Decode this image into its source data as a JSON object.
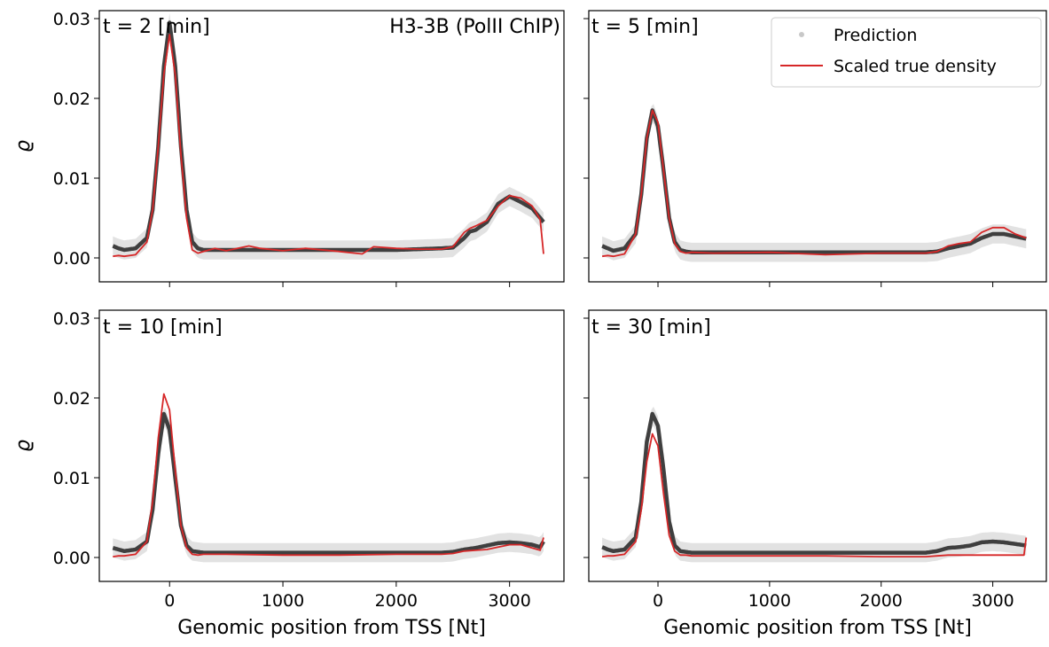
{
  "gene_label": "H3-3B (PolII ChIP)",
  "legend": {
    "position": "top-right",
    "entries": [
      {
        "label": "Prediction",
        "color": "#b0b0b0",
        "marker": "point"
      },
      {
        "label": "Scaled true density",
        "color": "#d62728",
        "marker": "line"
      }
    ]
  },
  "colors": {
    "prediction_band": "#e2e2e2",
    "prediction_line": "#222222",
    "true_density": "#d62728"
  },
  "chart_data": [
    {
      "type": "line",
      "panel": "t2",
      "title": "t = 2 [min]",
      "xlabel": "",
      "ylabel": "ϱ",
      "xlim": [
        -620,
        3480
      ],
      "ylim": [
        -0.003,
        0.031
      ],
      "xticks": [
        0,
        1000,
        2000,
        3000
      ],
      "yticks": [
        0.0,
        0.01,
        0.02,
        0.03
      ],
      "xticklabels": [
        "",
        "",
        "",
        ""
      ],
      "yticklabels": [
        "0.00",
        "0.01",
        "0.02",
        "0.03"
      ],
      "band_width": 0.0012,
      "series": [
        {
          "name": "Prediction",
          "x": [
            -500,
            -450,
            -400,
            -300,
            -200,
            -150,
            -100,
            -50,
            0,
            50,
            100,
            150,
            200,
            250,
            300,
            400,
            600,
            800,
            1000,
            1500,
            2000,
            2400,
            2500,
            2600,
            2650,
            2700,
            2800,
            2900,
            3000,
            3100,
            3200,
            3300
          ],
          "y": [
            0.0015,
            0.0012,
            0.001,
            0.0012,
            0.0025,
            0.006,
            0.014,
            0.024,
            0.0295,
            0.024,
            0.014,
            0.006,
            0.002,
            0.0012,
            0.001,
            0.001,
            0.001,
            0.001,
            0.001,
            0.001,
            0.001,
            0.0012,
            0.0013,
            0.0025,
            0.0033,
            0.0035,
            0.0045,
            0.0068,
            0.0077,
            0.007,
            0.0062,
            0.0045
          ]
        },
        {
          "name": "Scaled true density",
          "x": [
            -500,
            -450,
            -400,
            -300,
            -200,
            -150,
            -100,
            -50,
            0,
            50,
            100,
            150,
            200,
            250,
            300,
            400,
            500,
            700,
            800,
            1000,
            1200,
            1500,
            1700,
            1800,
            2000,
            2200,
            2400,
            2500,
            2600,
            2650,
            2700,
            2800,
            2900,
            3000,
            3100,
            3200,
            3270,
            3300
          ],
          "y": [
            0.0002,
            0.0003,
            0.0002,
            0.0004,
            0.002,
            0.006,
            0.014,
            0.023,
            0.028,
            0.023,
            0.013,
            0.005,
            0.001,
            0.0006,
            0.0008,
            0.0012,
            0.0009,
            0.0015,
            0.0012,
            0.0009,
            0.0012,
            0.0008,
            0.0005,
            0.0014,
            0.0012,
            0.0011,
            0.0011,
            0.0014,
            0.0032,
            0.0037,
            0.004,
            0.0047,
            0.0065,
            0.0078,
            0.0075,
            0.0065,
            0.0048,
            0.0005
          ]
        }
      ]
    },
    {
      "type": "line",
      "panel": "t5",
      "title": "t = 5 [min]",
      "xlabel": "",
      "ylabel": "",
      "xlim": [
        -620,
        3480
      ],
      "ylim": [
        -0.003,
        0.031
      ],
      "xticks": [
        0,
        1000,
        2000,
        3000
      ],
      "yticks": [
        0.0,
        0.01,
        0.02,
        0.03
      ],
      "xticklabels": [
        "",
        "",
        "",
        ""
      ],
      "yticklabels": [
        "",
        "",
        "",
        ""
      ],
      "band_width": 0.0012,
      "series": [
        {
          "name": "Prediction",
          "x": [
            -500,
            -450,
            -400,
            -300,
            -200,
            -150,
            -100,
            -50,
            0,
            50,
            100,
            150,
            200,
            250,
            300,
            500,
            1000,
            1500,
            2000,
            2400,
            2500,
            2600,
            2700,
            2800,
            2900,
            3000,
            3100,
            3200,
            3300
          ],
          "y": [
            0.0015,
            0.0012,
            0.0009,
            0.0012,
            0.003,
            0.008,
            0.015,
            0.0185,
            0.0165,
            0.011,
            0.005,
            0.002,
            0.001,
            0.0008,
            0.0007,
            0.0007,
            0.0007,
            0.0007,
            0.0007,
            0.0007,
            0.0008,
            0.0012,
            0.0015,
            0.0018,
            0.0025,
            0.003,
            0.003,
            0.0027,
            0.0024
          ]
        },
        {
          "name": "Scaled true density",
          "x": [
            -500,
            -450,
            -400,
            -300,
            -200,
            -150,
            -100,
            -50,
            0,
            50,
            100,
            150,
            200,
            250,
            300,
            500,
            1000,
            1500,
            2000,
            2400,
            2500,
            2600,
            2700,
            2800,
            2900,
            3000,
            3100,
            3200,
            3300
          ],
          "y": [
            0.0002,
            0.0003,
            0.0002,
            0.0005,
            0.003,
            0.008,
            0.015,
            0.0185,
            0.017,
            0.011,
            0.005,
            0.0018,
            0.0008,
            0.0006,
            0.0007,
            0.0006,
            0.0007,
            0.0004,
            0.0006,
            0.0006,
            0.0008,
            0.0015,
            0.0018,
            0.002,
            0.0032,
            0.0038,
            0.0038,
            0.003,
            0.0025
          ]
        }
      ]
    },
    {
      "type": "line",
      "panel": "t10",
      "title": "t = 10 [min]",
      "xlabel": "Genomic position from TSS [Nt]",
      "ylabel": "ϱ",
      "xlim": [
        -620,
        3480
      ],
      "ylim": [
        -0.003,
        0.031
      ],
      "xticks": [
        0,
        1000,
        2000,
        3000
      ],
      "yticks": [
        0.0,
        0.01,
        0.02,
        0.03
      ],
      "xticklabels": [
        "0",
        "1000",
        "2000",
        "3000"
      ],
      "yticklabels": [
        "0.00",
        "0.01",
        "0.02",
        "0.03"
      ],
      "band_width": 0.0012,
      "series": [
        {
          "name": "Prediction",
          "x": [
            -500,
            -450,
            -400,
            -300,
            -200,
            -150,
            -100,
            -50,
            0,
            50,
            100,
            150,
            200,
            250,
            300,
            500,
            1000,
            1500,
            2000,
            2400,
            2500,
            2600,
            2700,
            2800,
            2900,
            3000,
            3100,
            3200,
            3270,
            3300
          ],
          "y": [
            0.0012,
            0.001,
            0.0008,
            0.001,
            0.002,
            0.006,
            0.013,
            0.018,
            0.016,
            0.01,
            0.004,
            0.0015,
            0.0008,
            0.0007,
            0.0006,
            0.0006,
            0.0006,
            0.0006,
            0.0006,
            0.0006,
            0.0007,
            0.001,
            0.0012,
            0.0015,
            0.0018,
            0.0019,
            0.0018,
            0.0016,
            0.0013,
            0.002
          ]
        },
        {
          "name": "Scaled true density",
          "x": [
            -500,
            -450,
            -400,
            -300,
            -200,
            -150,
            -100,
            -50,
            0,
            50,
            100,
            150,
            200,
            250,
            300,
            500,
            1000,
            1500,
            2000,
            2400,
            2500,
            2600,
            2700,
            2800,
            2900,
            3000,
            3100,
            3200,
            3270,
            3300
          ],
          "y": [
            0.0001,
            0.0002,
            0.0002,
            0.0004,
            0.002,
            0.007,
            0.015,
            0.0205,
            0.0185,
            0.011,
            0.004,
            0.0012,
            0.0004,
            0.0003,
            0.0004,
            0.0004,
            0.0003,
            0.0003,
            0.0004,
            0.0004,
            0.0005,
            0.0008,
            0.0009,
            0.001,
            0.0013,
            0.0016,
            0.0016,
            0.0012,
            0.0009,
            0.0025
          ]
        }
      ]
    },
    {
      "type": "line",
      "panel": "t30",
      "title": "t = 30 [min]",
      "xlabel": "Genomic position from TSS [Nt]",
      "ylabel": "",
      "xlim": [
        -620,
        3480
      ],
      "ylim": [
        -0.003,
        0.031
      ],
      "xticks": [
        0,
        1000,
        2000,
        3000
      ],
      "yticks": [
        0.0,
        0.01,
        0.02,
        0.03
      ],
      "xticklabels": [
        "0",
        "1000",
        "2000",
        "3000"
      ],
      "yticklabels": [
        "",
        "",
        "",
        ""
      ],
      "band_width": 0.0012,
      "series": [
        {
          "name": "Prediction",
          "x": [
            -500,
            -450,
            -400,
            -300,
            -200,
            -150,
            -100,
            -50,
            0,
            50,
            100,
            150,
            200,
            250,
            300,
            500,
            1000,
            1500,
            2000,
            2400,
            2500,
            2600,
            2700,
            2800,
            2900,
            3000,
            3100,
            3200,
            3300
          ],
          "y": [
            0.0013,
            0.001,
            0.0008,
            0.001,
            0.0025,
            0.007,
            0.0145,
            0.018,
            0.0165,
            0.011,
            0.0045,
            0.0015,
            0.0008,
            0.0007,
            0.0006,
            0.0006,
            0.0006,
            0.0006,
            0.0006,
            0.0006,
            0.0008,
            0.0012,
            0.0013,
            0.0015,
            0.0019,
            0.002,
            0.0019,
            0.0017,
            0.0015
          ]
        },
        {
          "name": "Scaled true density",
          "x": [
            -500,
            -450,
            -400,
            -300,
            -200,
            -150,
            -100,
            -50,
            0,
            50,
            100,
            150,
            200,
            250,
            300,
            500,
            1000,
            1500,
            2000,
            2400,
            2500,
            2600,
            2800,
            3000,
            3200,
            3280,
            3300
          ],
          "y": [
            0.0001,
            0.0002,
            0.0002,
            0.0004,
            0.002,
            0.006,
            0.012,
            0.0155,
            0.014,
            0.008,
            0.0028,
            0.0008,
            0.0003,
            0.0003,
            0.0002,
            0.0002,
            0.0002,
            0.0002,
            0.0001,
            0.0001,
            0.0002,
            0.0003,
            0.0003,
            0.0003,
            0.0003,
            0.0003,
            0.0025
          ]
        }
      ]
    }
  ]
}
